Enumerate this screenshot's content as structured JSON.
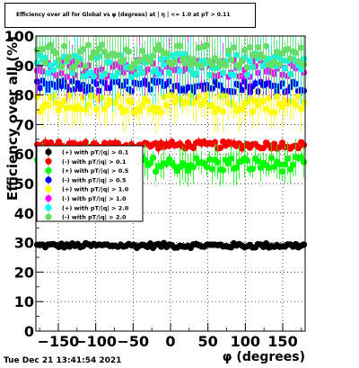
{
  "title": "Efficiency over all for Global vs φ (degrees) at | η | <= 1.0 at pT > 0.11",
  "timestamp": "Tue Dec 21 13:41:54 2021",
  "chart_data": {
    "type": "scatter",
    "xlabel": "φ (degrees)",
    "ylabel": "Efficiency over all (%)",
    "xlim": [
      -180,
      180
    ],
    "ylim": [
      0,
      100
    ],
    "xticks": [
      "-150",
      "-100",
      "-50",
      "0",
      "50",
      "100",
      "150"
    ],
    "yticks": [
      "0",
      "10",
      "20",
      "30",
      "40",
      "50",
      "60",
      "70",
      "80",
      "90",
      "100"
    ],
    "grid": true,
    "legend_position": "left-middle",
    "series": [
      {
        "name": "(+) with pT/|q| > 0.1",
        "color": "#000000",
        "marker": "circle",
        "mean": 29.0,
        "spread": 0.8,
        "errbar": 0.8
      },
      {
        "name": "(-) with pT/|q| > 0.1",
        "color": "#ff0000",
        "marker": "circle",
        "mean": 63.0,
        "spread": 1.2,
        "errbar": 1.2
      },
      {
        "name": "(+) with pT/|q| > 0.5",
        "color": "#00ff00",
        "marker": "circle",
        "mean": 56.5,
        "spread": 2.5,
        "errbar": 4.0
      },
      {
        "name": "(-) with pT/|q| > 0.5",
        "color": "#0000ff",
        "marker": "circle",
        "mean": 83.0,
        "spread": 2.0,
        "errbar": 3.0
      },
      {
        "name": "(+) with pT/|q| > 1.0",
        "color": "#ffff00",
        "marker": "circle",
        "mean": 77.0,
        "spread": 3.0,
        "errbar": 5.0
      },
      {
        "name": "(-) with pT/|q| > 1.0",
        "color": "#ff00ff",
        "marker": "circle",
        "mean": 89.0,
        "spread": 3.0,
        "errbar": 6.0
      },
      {
        "name": "(+) with pT/|q| > 2.0",
        "color": "#00ffff",
        "marker": "circle",
        "mean": 90.0,
        "spread": 4.0,
        "errbar": 8.0
      },
      {
        "name": "(-) with pT/|q| > 2.0",
        "color": "#66dd66",
        "marker": "circle",
        "mean": 93.0,
        "spread": 4.0,
        "errbar": 8.0
      }
    ]
  }
}
